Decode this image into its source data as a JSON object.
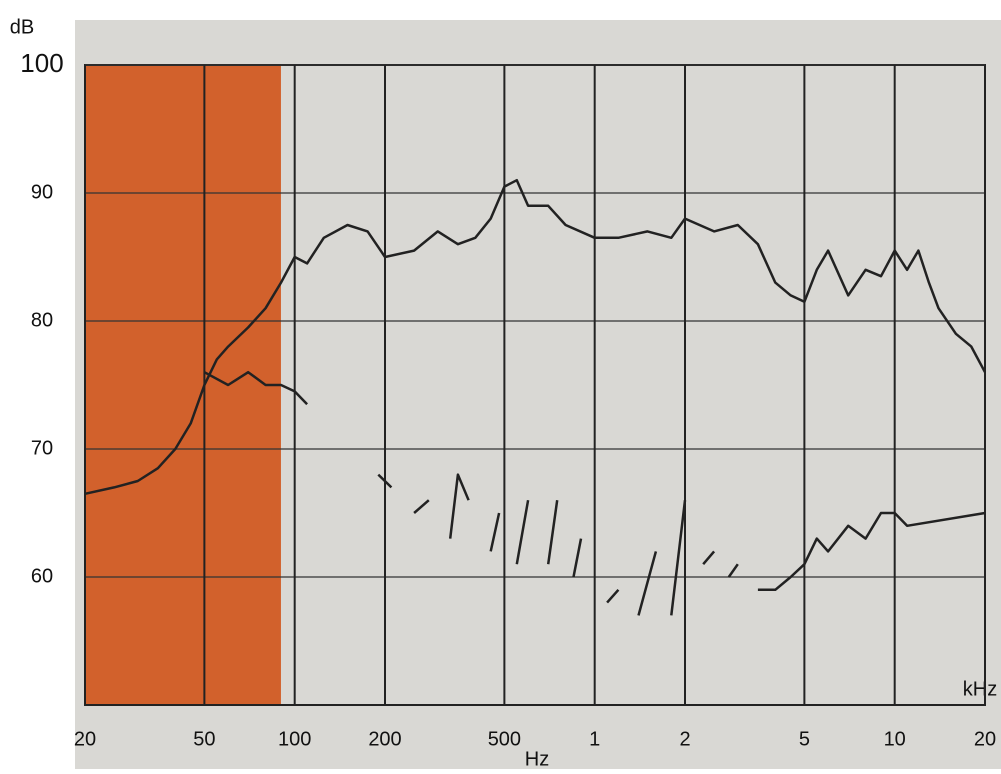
{
  "chart_data": {
    "type": "line",
    "ylabel": "dB",
    "xlabel": "Hz",
    "xlabel_k": "kHz",
    "log_x": true,
    "grid": true,
    "xlim": [
      20,
      20000
    ],
    "ylim": [
      50,
      100
    ],
    "yticks": [
      60,
      70,
      80,
      90,
      100
    ],
    "xticks": [
      20,
      50,
      100,
      200,
      500,
      {
        "value": 1000,
        "label": "1"
      },
      {
        "value": 2000,
        "label": "2"
      },
      {
        "value": 5000,
        "label": "5"
      },
      {
        "value": 10000,
        "label": "10"
      },
      {
        "value": 20000,
        "label": "20"
      }
    ],
    "shaded_region": {
      "xlim": [
        20,
        90
      ],
      "color": "#d2612c"
    },
    "series": [
      {
        "color": "#222222",
        "x": [
          20,
          25,
          30,
          35,
          40,
          45,
          50,
          55,
          60,
          70,
          80,
          90,
          100,
          110,
          125,
          150,
          175,
          200,
          250,
          300,
          350,
          400,
          450,
          500,
          550,
          600,
          700,
          800,
          1000,
          1200,
          1500,
          1800,
          2000,
          2500,
          3000,
          3500,
          4000,
          4500,
          5000,
          5500,
          6000,
          7000,
          8000,
          9000,
          10000,
          11000,
          12000,
          13000,
          14000,
          16000,
          18000,
          20000
        ],
        "values": [
          66.5,
          67,
          67.5,
          68.5,
          70,
          72,
          75,
          77,
          78,
          79.5,
          81,
          83,
          85,
          84.5,
          86.5,
          87.5,
          87,
          85,
          85.5,
          87,
          86,
          86.5,
          88,
          90.5,
          91,
          89,
          89,
          87.5,
          86.5,
          86.5,
          87,
          86.5,
          88,
          87,
          87.5,
          86,
          83,
          82,
          81.5,
          84,
          85.5,
          82,
          84,
          83.5,
          85.5,
          84,
          85.5,
          83,
          81,
          79,
          78,
          76
        ]
      },
      {
        "color": "#222222",
        "x": [
          50,
          60,
          70,
          80,
          90,
          100,
          110,
          120,
          130,
          145,
          160,
          175,
          190,
          210,
          230,
          250,
          280,
          305,
          330,
          350,
          380,
          415,
          450,
          480,
          515,
          550,
          600,
          650,
          700,
          750,
          800,
          850,
          900,
          1000,
          1100,
          1200,
          1300,
          1400,
          1600,
          1700,
          1800,
          2000,
          2150,
          2300,
          2500,
          2650,
          2800,
          3000,
          3250,
          3500,
          4000,
          4500,
          5000,
          5500,
          6000,
          7000,
          8000,
          9000,
          10000,
          11000,
          20000
        ],
        "values": [
          76,
          75,
          76,
          75,
          75,
          74.5,
          73.5,
          null,
          74,
          null,
          71,
          null,
          68,
          67,
          null,
          65,
          66,
          null,
          63,
          68,
          66,
          null,
          62,
          65,
          null,
          61,
          66,
          null,
          61,
          66,
          null,
          60,
          63,
          null,
          58,
          59,
          null,
          57,
          62,
          null,
          57,
          66,
          null,
          61,
          62,
          null,
          60,
          61,
          null,
          59,
          59,
          60,
          61,
          63,
          62,
          64,
          63,
          65,
          65,
          64,
          65
        ]
      }
    ]
  }
}
